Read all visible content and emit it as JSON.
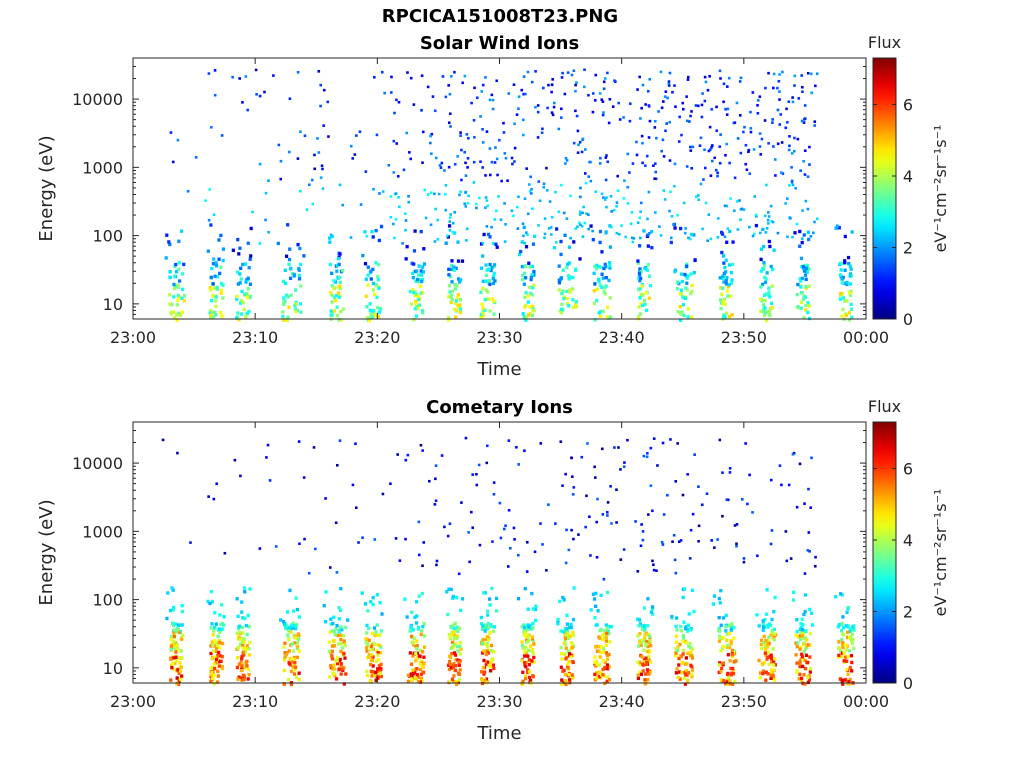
{
  "figure": {
    "title": "RPCICA151008T23.PNG"
  },
  "chart_data": [
    {
      "type": "heatmap",
      "title": "Solar Wind Ions",
      "xlabel": "Time",
      "ylabel": "Energy (eV)",
      "y_scale": "log",
      "xlim": [
        "23:00",
        "00:00"
      ],
      "ylim": [
        6,
        40000
      ],
      "x_ticks": [
        "23:00",
        "23:10",
        "23:20",
        "23:30",
        "23:40",
        "23:50",
        "00:00"
      ],
      "y_ticks": [
        "10",
        "100",
        "1000",
        "10000"
      ],
      "colorbar": {
        "label": "Flux",
        "units": "eV⁻¹cm⁻²sr⁻¹s⁻¹",
        "ticks": [
          "0",
          "2",
          "4",
          "6"
        ],
        "range": [
          0,
          7.3
        ],
        "colormap": "jet"
      },
      "data_coverage_minutes": [
        2,
        56
      ],
      "sweep_minutes": [
        3.2,
        6.5,
        8.7,
        12.6,
        16.3,
        19.3,
        22.8,
        26.0,
        28.7,
        32.0,
        35.2,
        38.0,
        41.5,
        44.7,
        48.2,
        51.5,
        54.5,
        58.0
      ],
      "observation": "Sparse low-flux (blue/cyan) counts from ~100 eV to ~20000 eV increasing in density toward 23:55; dense moderate-flux (green/yellow, peak ~5) bursts at 6–40 eV during each sweep."
    },
    {
      "type": "heatmap",
      "title": "Cometary Ions",
      "xlabel": "Time",
      "ylabel": "Energy (eV)",
      "y_scale": "log",
      "xlim": [
        "23:00",
        "00:00"
      ],
      "ylim": [
        6,
        40000
      ],
      "x_ticks": [
        "23:00",
        "23:10",
        "23:20",
        "23:30",
        "23:40",
        "23:50",
        "00:00"
      ],
      "y_ticks": [
        "10",
        "100",
        "1000",
        "10000"
      ],
      "colorbar": {
        "label": "Flux",
        "units": "eV⁻¹cm⁻²sr⁻¹s⁻¹",
        "ticks": [
          "0",
          "2",
          "4",
          "6"
        ],
        "range": [
          0,
          7.3
        ],
        "colormap": "jet"
      },
      "data_coverage_minutes": [
        2,
        56
      ],
      "sweep_minutes": [
        3.2,
        6.5,
        8.7,
        12.6,
        16.3,
        19.3,
        22.8,
        26.0,
        28.7,
        32.0,
        35.2,
        38.0,
        41.5,
        44.7,
        48.2,
        51.5,
        54.5,
        58.0
      ],
      "observation": "Intense (orange/red, peak ~6.5) columns at 6–40 eV during each sweep with cyan/green halo up to ~100 eV; scattered low-flux blue counts above 300 eV."
    }
  ]
}
